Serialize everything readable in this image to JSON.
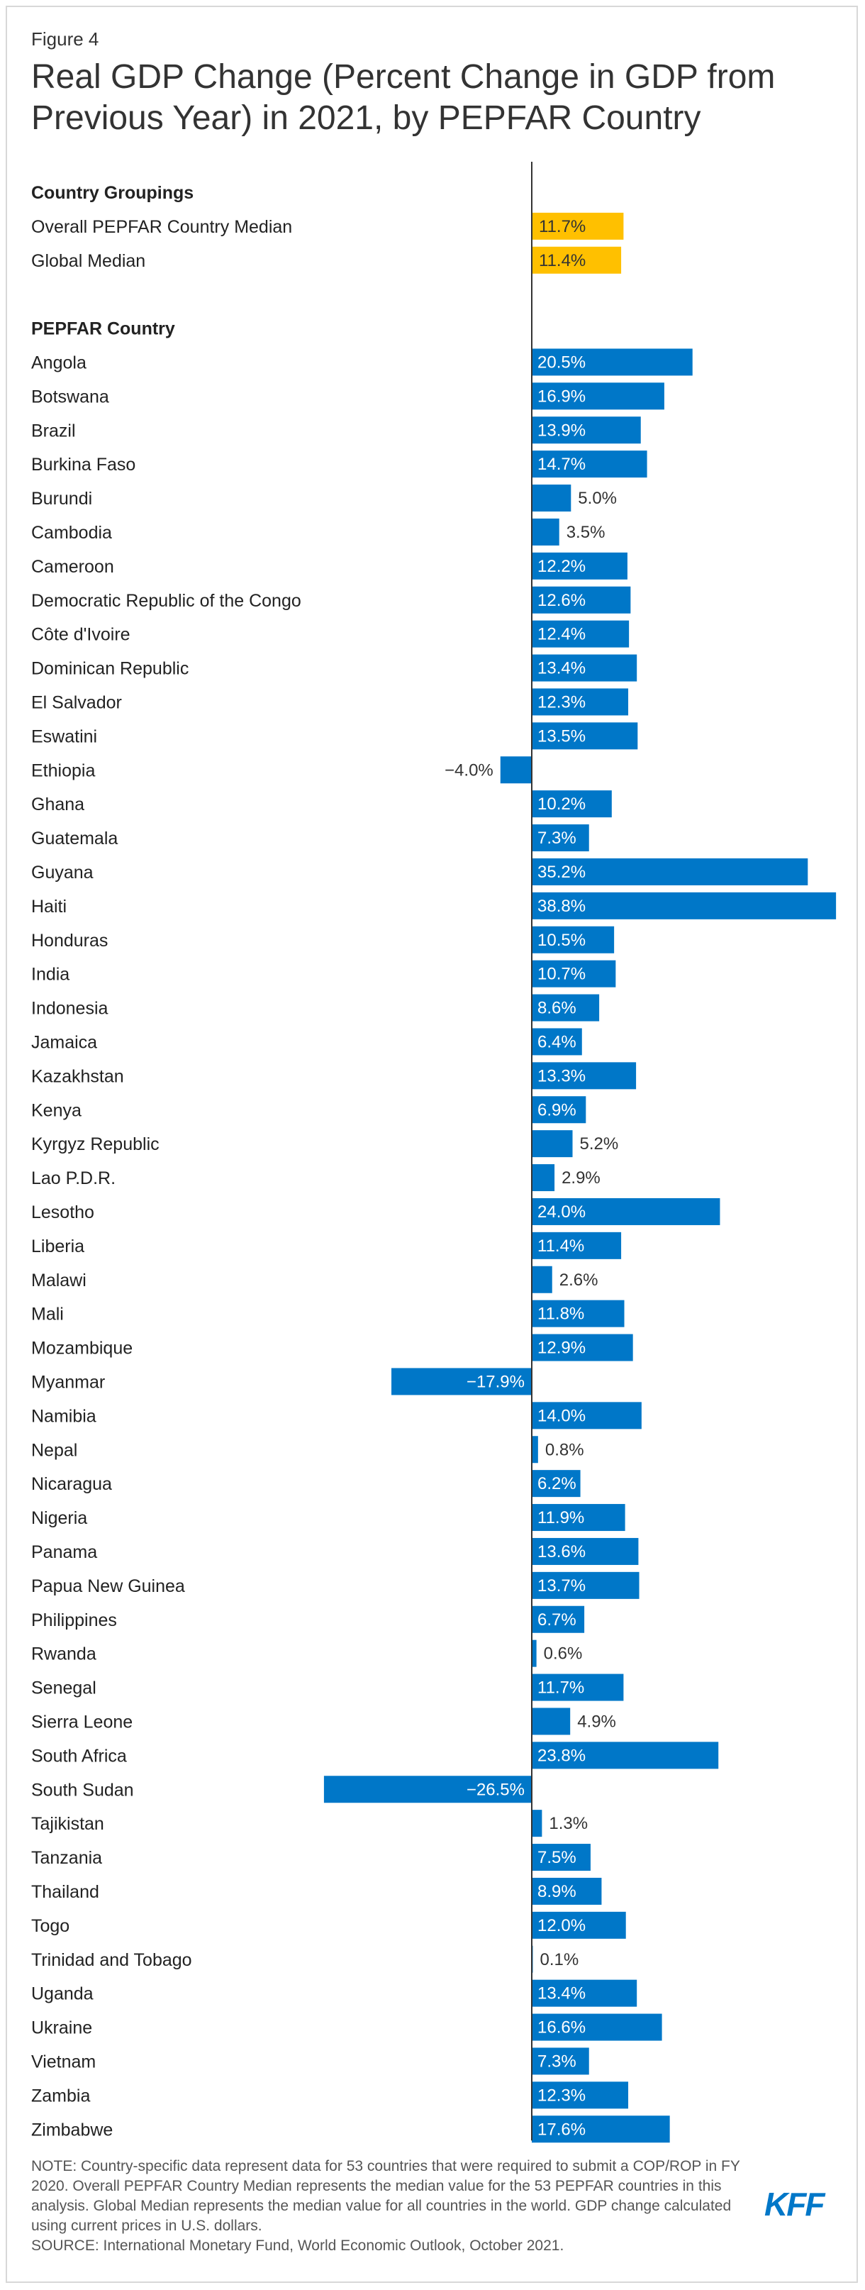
{
  "figure_label": "Figure 4",
  "title": "Real GDP Change (Percent Change in GDP from Previous Year) in 2021, by PEPFAR Country",
  "colors": {
    "highlight": "#ffc000",
    "bar": "#0077c8",
    "axis": "#333333"
  },
  "chart_data": {
    "type": "bar",
    "orientation": "horizontal",
    "groups": [
      {
        "heading": "Country Groupings",
        "color": "#ffc000",
        "rows": [
          {
            "label": "Overall PEPFAR Country Median",
            "value": 11.7,
            "display": "11.7%"
          },
          {
            "label": "Global Median",
            "value": 11.4,
            "display": "11.4%"
          }
        ]
      },
      {
        "heading": "PEPFAR Country",
        "color": "#0077c8",
        "rows": [
          {
            "label": "Angola",
            "value": 20.5,
            "display": "20.5%"
          },
          {
            "label": "Botswana",
            "value": 16.9,
            "display": "16.9%"
          },
          {
            "label": "Brazil",
            "value": 13.9,
            "display": "13.9%"
          },
          {
            "label": "Burkina Faso",
            "value": 14.7,
            "display": "14.7%"
          },
          {
            "label": "Burundi",
            "value": 5.0,
            "display": "5.0%"
          },
          {
            "label": "Cambodia",
            "value": 3.5,
            "display": "3.5%"
          },
          {
            "label": "Cameroon",
            "value": 12.2,
            "display": "12.2%"
          },
          {
            "label": "Democratic Republic of the Congo",
            "value": 12.6,
            "display": "12.6%"
          },
          {
            "label": "Côte d'Ivoire",
            "value": 12.4,
            "display": "12.4%"
          },
          {
            "label": "Dominican Republic",
            "value": 13.4,
            "display": "13.4%"
          },
          {
            "label": "El Salvador",
            "value": 12.3,
            "display": "12.3%"
          },
          {
            "label": "Eswatini",
            "value": 13.5,
            "display": "13.5%"
          },
          {
            "label": "Ethiopia",
            "value": -4.0,
            "display": "−4.0%"
          },
          {
            "label": "Ghana",
            "value": 10.2,
            "display": "10.2%"
          },
          {
            "label": "Guatemala",
            "value": 7.3,
            "display": "7.3%"
          },
          {
            "label": "Guyana",
            "value": 35.2,
            "display": "35.2%"
          },
          {
            "label": "Haiti",
            "value": 38.8,
            "display": "38.8%"
          },
          {
            "label": "Honduras",
            "value": 10.5,
            "display": "10.5%"
          },
          {
            "label": "India",
            "value": 10.7,
            "display": "10.7%"
          },
          {
            "label": "Indonesia",
            "value": 8.6,
            "display": "8.6%"
          },
          {
            "label": "Jamaica",
            "value": 6.4,
            "display": "6.4%"
          },
          {
            "label": "Kazakhstan",
            "value": 13.3,
            "display": "13.3%"
          },
          {
            "label": "Kenya",
            "value": 6.9,
            "display": "6.9%"
          },
          {
            "label": "Kyrgyz Republic",
            "value": 5.2,
            "display": "5.2%"
          },
          {
            "label": "Lao P.D.R.",
            "value": 2.9,
            "display": "2.9%"
          },
          {
            "label": "Lesotho",
            "value": 24.0,
            "display": "24.0%"
          },
          {
            "label": "Liberia",
            "value": 11.4,
            "display": "11.4%"
          },
          {
            "label": "Malawi",
            "value": 2.6,
            "display": "2.6%"
          },
          {
            "label": "Mali",
            "value": 11.8,
            "display": "11.8%"
          },
          {
            "label": "Mozambique",
            "value": 12.9,
            "display": "12.9%"
          },
          {
            "label": "Myanmar",
            "value": -17.9,
            "display": "−17.9%"
          },
          {
            "label": "Namibia",
            "value": 14.0,
            "display": "14.0%"
          },
          {
            "label": "Nepal",
            "value": 0.8,
            "display": "0.8%"
          },
          {
            "label": "Nicaragua",
            "value": 6.2,
            "display": "6.2%"
          },
          {
            "label": "Nigeria",
            "value": 11.9,
            "display": "11.9%"
          },
          {
            "label": "Panama",
            "value": 13.6,
            "display": "13.6%"
          },
          {
            "label": "Papua New Guinea",
            "value": 13.7,
            "display": "13.7%"
          },
          {
            "label": "Philippines",
            "value": 6.7,
            "display": "6.7%"
          },
          {
            "label": "Rwanda",
            "value": 0.6,
            "display": "0.6%"
          },
          {
            "label": "Senegal",
            "value": 11.7,
            "display": "11.7%"
          },
          {
            "label": "Sierra Leone",
            "value": 4.9,
            "display": "4.9%"
          },
          {
            "label": "South Africa",
            "value": 23.8,
            "display": "23.8%"
          },
          {
            "label": "South Sudan",
            "value": -26.5,
            "display": "−26.5%"
          },
          {
            "label": "Tajikistan",
            "value": 1.3,
            "display": "1.3%"
          },
          {
            "label": "Tanzania",
            "value": 7.5,
            "display": "7.5%"
          },
          {
            "label": "Thailand",
            "value": 8.9,
            "display": "8.9%"
          },
          {
            "label": "Togo",
            "value": 12.0,
            "display": "12.0%"
          },
          {
            "label": "Trinidad and Tobago",
            "value": 0.1,
            "display": "0.1%"
          },
          {
            "label": "Uganda",
            "value": 13.4,
            "display": "13.4%"
          },
          {
            "label": "Ukraine",
            "value": 16.6,
            "display": "16.6%"
          },
          {
            "label": "Vietnam",
            "value": 7.3,
            "display": "7.3%"
          },
          {
            "label": "Zambia",
            "value": 12.3,
            "display": "12.3%"
          },
          {
            "label": "Zimbabwe",
            "value": 17.6,
            "display": "17.6%"
          }
        ]
      }
    ]
  },
  "notes": [
    "NOTE: Country-specific data represent data for 53 countries that were required to submit a COP/ROP in FY 2020. Overall PEPFAR Country Median represents the median value for the 53 PEPFAR countries in this analysis. Global Median represents the median value for all countries in the world. GDP change calculated using current prices in U.S. dollars.",
    "SOURCE: International Monetary Fund, World Economic Outlook, October 2021."
  ],
  "logo_text": "KFF"
}
